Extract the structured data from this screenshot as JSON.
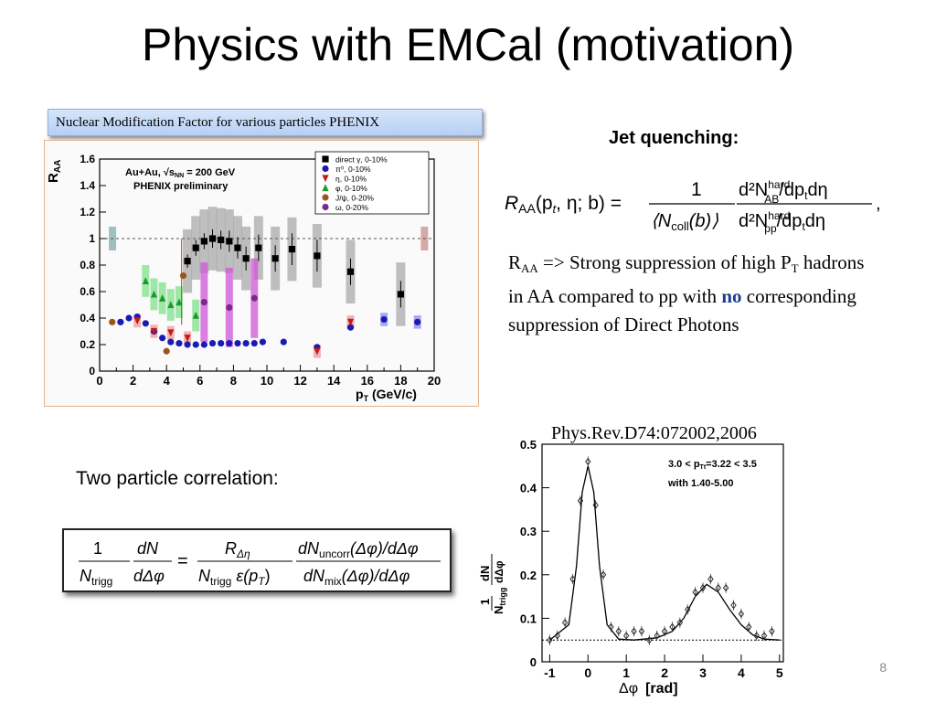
{
  "slide": {
    "title": "Physics with EMCal (motivation)",
    "page_number": "8"
  },
  "raa_panel": {
    "caption": "Nuclear Modification Factor for various particles  PHENIX",
    "plot": {
      "y_label": "R",
      "y_label_sub": "AA",
      "x_label": "p",
      "x_label_sub": "T",
      "x_label_units": "(GeV/c)",
      "annotation_line1": "Au+Au, √s",
      "annotation_sub": "NN",
      "annotation_line1_end": " = 200 GeV",
      "annotation_line2": "PHENIX preliminary",
      "legend": [
        {
          "label": "direct γ, 0-10%",
          "color": "#000000",
          "marker": "square"
        },
        {
          "label": "π⁰, 0-10%",
          "color": "#1b1bb4",
          "marker": "circle"
        },
        {
          "label": "η, 0-10%",
          "color": "#c41a1a",
          "marker": "triangle-down"
        },
        {
          "label": "φ, 0-10%",
          "color": "#1a9a2e",
          "marker": "triangle-up"
        },
        {
          "label": "J/ψ, 0-20%",
          "color": "#a0521d",
          "marker": "circle"
        },
        {
          "label": "ω, 0-20%",
          "color": "#7a2a8a",
          "marker": "circle"
        }
      ]
    }
  },
  "jet_quenching": {
    "heading": "Jet quenching:",
    "formula": {
      "lhs": "R",
      "lhs_sub": "AA",
      "lhs_args": "(p",
      "lhs_args_sub": "t",
      "lhs_args_end": ", η; b) =",
      "frac1_num": "1",
      "frac1_den": "⟨N",
      "frac1_den_sub": "coll",
      "frac1_den_end": "(b)⟩",
      "frac2_num": "d²N",
      "frac2_num_sup": "hard",
      "frac2_num_sub": "AB",
      "frac2_num_end": "/dp",
      "frac2_num_end_sub": "t",
      "frac2_num_tail": "dη",
      "frac2_den": "d²N",
      "frac2_den_sup": "hard",
      "frac2_den_sub": "pp",
      "frac2_den_end": "/dp",
      "frac2_den_end_sub": "t",
      "frac2_den_tail": "dη",
      "trailing": ","
    },
    "text": {
      "r": "R",
      "r_sub": "AA",
      "part1": " => Strong suppression of high P",
      "p_sub": "T",
      "part2": " hadrons in AA compared to pp with ",
      "emphasis": "no",
      "part3": " corresponding suppression of Direct Photons"
    }
  },
  "correlation": {
    "heading": "Two particle correlation:",
    "formula": {
      "a_num": "1",
      "a_den": "N",
      "a_den_sub": "trigg",
      "b_num": "dN",
      "b_den": "dΔφ",
      "eq": "=",
      "c_num": "R",
      "c_num_sub": "Δη",
      "c_den": "N",
      "c_den_sub": "trigg",
      "c_den_end": " ε(p",
      "c_den_end_sub": "T",
      "c_den_tail": ")",
      "d_num": "dN",
      "d_num_sub": "uncorr",
      "d_num_end": "(Δφ)/dΔφ",
      "d_den": "dN",
      "d_den_sub": "mix",
      "d_den_end": "(Δφ)/dΔφ"
    },
    "reference": "Phys.Rev.D74:072002,2006",
    "plot": {
      "y_label_num": "1",
      "y_label_den": "N",
      "y_label_den_sub": "trigg",
      "y_label_right": "dN",
      "y_label_right_den": "dΔφ",
      "x_label": "Δφ",
      "x_label_units": "[rad]",
      "annotation1": "3.0 < p",
      "annotation1_sub": "Tt",
      "annotation1_end": "=3.22 < 3.5",
      "annotation2": "with 1.40-5.00"
    }
  },
  "chart_data": [
    {
      "type": "scatter",
      "title": "",
      "xlabel": "p_T (GeV/c)",
      "ylabel": "R_AA",
      "xlim": [
        0,
        20
      ],
      "ylim": [
        0,
        1.6
      ],
      "x_ticks": [
        "0",
        "2",
        "4",
        "6",
        "8",
        "10",
        "12",
        "14",
        "16",
        "18",
        "20"
      ],
      "y_ticks": [
        "0",
        "0.2",
        "0.4",
        "0.6",
        "0.8",
        "1",
        "1.2",
        "1.4",
        "1.6"
      ],
      "reference_line": 1.0,
      "grid": false,
      "legend_position": "top-right",
      "series": [
        {
          "name": "direct γ, 0-10%",
          "color": "#000000",
          "x": [
            5.25,
            5.75,
            6.25,
            6.75,
            7.25,
            7.75,
            8.25,
            8.75,
            9.5,
            10.5,
            11.5,
            13.0,
            15.0,
            18.0
          ],
          "y": [
            0.83,
            0.93,
            0.98,
            1.0,
            0.99,
            0.98,
            0.93,
            0.85,
            0.93,
            0.85,
            0.92,
            0.87,
            0.75,
            0.58
          ],
          "err": [
            0.05,
            0.06,
            0.06,
            0.07,
            0.07,
            0.08,
            0.08,
            0.09,
            0.1,
            0.1,
            0.12,
            0.12,
            0.1,
            0.1
          ]
        },
        {
          "name": "π⁰, 0-10%",
          "color": "#1b1bb4",
          "x": [
            1.25,
            1.75,
            2.25,
            2.75,
            3.25,
            3.75,
            4.25,
            4.75,
            5.25,
            5.75,
            6.25,
            6.75,
            7.25,
            7.75,
            8.25,
            8.75,
            9.25,
            9.75,
            11.0,
            13.0,
            15.0,
            17.0,
            19.0
          ],
          "y": [
            0.37,
            0.4,
            0.41,
            0.36,
            0.3,
            0.25,
            0.22,
            0.21,
            0.2,
            0.2,
            0.2,
            0.21,
            0.21,
            0.21,
            0.21,
            0.21,
            0.21,
            0.22,
            0.22,
            0.18,
            0.33,
            0.39,
            0.37
          ]
        },
        {
          "name": "η, 0-10%",
          "color": "#c41a1a",
          "x": [
            2.25,
            3.25,
            4.25,
            5.25,
            13.0,
            15.0
          ],
          "y": [
            0.38,
            0.3,
            0.29,
            0.25,
            0.15,
            0.37
          ]
        },
        {
          "name": "φ, 0-10%",
          "color": "#1a9a2e",
          "x": [
            2.75,
            3.25,
            3.75,
            4.25,
            4.75,
            5.75
          ],
          "y": [
            0.68,
            0.58,
            0.55,
            0.5,
            0.52,
            0.42
          ]
        },
        {
          "name": "J/ψ, 0-20%",
          "color": "#a0521d",
          "x": [
            0.75,
            4.0,
            5.0
          ],
          "y": [
            0.37,
            0.15,
            0.72
          ]
        },
        {
          "name": "ω, 0-20%",
          "color": "#7a2a8a",
          "x": [
            6.25,
            7.75,
            9.25
          ],
          "y": [
            0.52,
            0.48,
            0.55
          ]
        }
      ]
    },
    {
      "type": "scatter",
      "title": "",
      "xlabel": "Δφ [rad]",
      "ylabel": "1/N_trigg dN/dΔφ",
      "xlim": [
        -1.2,
        5.1
      ],
      "ylim": [
        0,
        0.5
      ],
      "x_ticks": [
        "-1",
        "0",
        "1",
        "2",
        "3",
        "4",
        "5"
      ],
      "y_ticks": [
        "0",
        "0.1",
        "0.2",
        "0.3",
        "0.4",
        "0.5"
      ],
      "pedestal": 0.05,
      "grid": false,
      "series": [
        {
          "name": "",
          "marker": "open-diamond",
          "x": [
            -1.0,
            -0.8,
            -0.6,
            -0.4,
            -0.2,
            0.0,
            0.2,
            0.4,
            0.6,
            0.8,
            1.0,
            1.2,
            1.4,
            1.6,
            1.8,
            2.0,
            2.2,
            2.4,
            2.6,
            2.8,
            3.0,
            3.2,
            3.4,
            3.6,
            3.8,
            4.0,
            4.2,
            4.4,
            4.6,
            4.8
          ],
          "y": [
            0.05,
            0.06,
            0.09,
            0.19,
            0.37,
            0.46,
            0.36,
            0.2,
            0.08,
            0.07,
            0.06,
            0.07,
            0.07,
            0.05,
            0.06,
            0.07,
            0.08,
            0.09,
            0.12,
            0.16,
            0.17,
            0.19,
            0.17,
            0.17,
            0.13,
            0.11,
            0.08,
            0.06,
            0.06,
            0.07
          ]
        },
        {
          "name": "",
          "type": "line",
          "x": [
            -1.0,
            -0.5,
            -0.3,
            -0.15,
            0.0,
            0.15,
            0.3,
            0.5,
            0.8,
            1.2,
            1.8,
            2.2,
            2.5,
            2.8,
            3.1,
            3.4,
            3.7,
            4.0,
            4.3,
            4.6,
            5.0
          ],
          "y": [
            0.05,
            0.085,
            0.22,
            0.39,
            0.45,
            0.39,
            0.22,
            0.085,
            0.052,
            0.05,
            0.055,
            0.07,
            0.1,
            0.15,
            0.178,
            0.16,
            0.12,
            0.085,
            0.062,
            0.052,
            0.05
          ]
        }
      ]
    }
  ]
}
